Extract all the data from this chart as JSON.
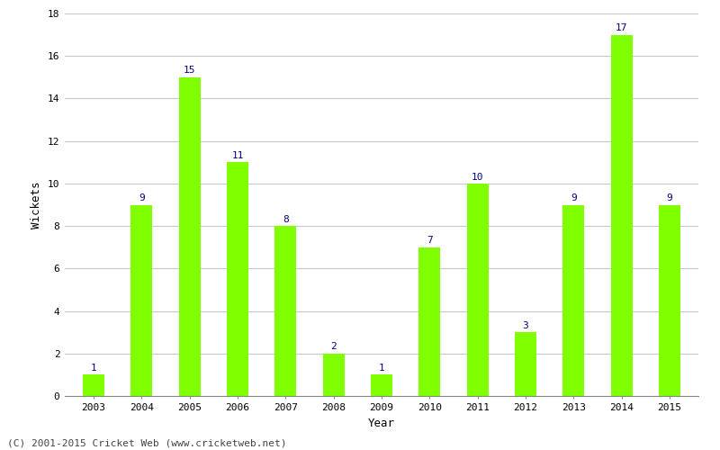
{
  "years": [
    2003,
    2004,
    2005,
    2006,
    2007,
    2008,
    2009,
    2010,
    2011,
    2012,
    2013,
    2014,
    2015
  ],
  "wickets": [
    1,
    9,
    15,
    11,
    8,
    2,
    1,
    7,
    10,
    3,
    9,
    17,
    9
  ],
  "bar_color": "#7fff00",
  "bar_edge_color": "#7fff00",
  "title": "",
  "xlabel": "Year",
  "ylabel": "Wickets",
  "ylim": [
    0,
    18
  ],
  "yticks": [
    0,
    2,
    4,
    6,
    8,
    10,
    12,
    14,
    16,
    18
  ],
  "label_color": "#000080",
  "label_fontsize": 8,
  "axis_label_fontsize": 9,
  "tick_fontsize": 8,
  "grid_color": "#c8c8c8",
  "background_color": "#ffffff",
  "footer_text": "(C) 2001-2015 Cricket Web (www.cricketweb.net)",
  "footer_fontsize": 8,
  "footer_color": "#444444"
}
